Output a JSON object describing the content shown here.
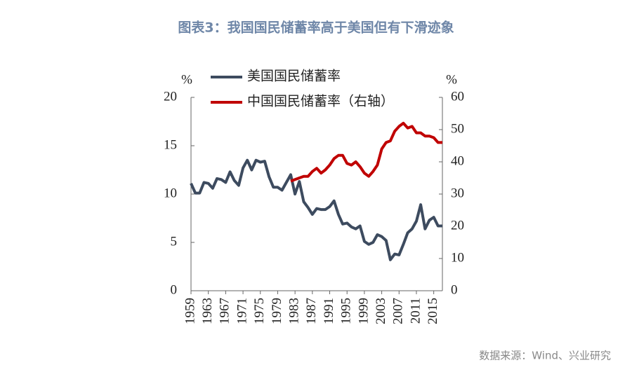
{
  "chart_data": {
    "type": "line",
    "title": "图表3：我国国民储蓄率高于美国但有下滑迹象",
    "source": "数据来源：Wind、兴业研究",
    "ylabel": "%",
    "y2label": "%",
    "x": [
      1959,
      1960,
      1961,
      1962,
      1963,
      1964,
      1965,
      1966,
      1967,
      1968,
      1969,
      1970,
      1971,
      1972,
      1973,
      1974,
      1975,
      1976,
      1977,
      1978,
      1979,
      1980,
      1981,
      1982,
      1983,
      1984,
      1985,
      1986,
      1987,
      1988,
      1989,
      1990,
      1991,
      1992,
      1993,
      1994,
      1995,
      1996,
      1997,
      1998,
      1999,
      2000,
      2001,
      2002,
      2003,
      2004,
      2005,
      2006,
      2007,
      2008,
      2009,
      2010,
      2011,
      2012,
      2013,
      2014,
      2015,
      2016,
      2017
    ],
    "xlim": [
      1959,
      2017
    ],
    "xticks": [
      1959,
      1963,
      1967,
      1971,
      1975,
      1979,
      1983,
      1987,
      1991,
      1995,
      1999,
      2003,
      2007,
      2011,
      2015
    ],
    "ylim": [
      0,
      20
    ],
    "yticks": [
      0,
      5,
      10,
      15,
      20
    ],
    "y2lim": [
      0,
      60
    ],
    "y2ticks": [
      0,
      10,
      20,
      30,
      40,
      50,
      60
    ],
    "legend": "upper left",
    "series": [
      {
        "name": "美国国民储蓄率",
        "color": "#3d4b5f",
        "values": [
          11.1,
          10.1,
          10.1,
          11.2,
          11.1,
          10.6,
          11.6,
          11.5,
          11.2,
          12.3,
          11.4,
          10.9,
          12.7,
          13.5,
          12.5,
          13.5,
          13.3,
          13.4,
          11.8,
          10.7,
          10.7,
          10.4,
          11.2,
          12.0,
          10.0,
          11.3,
          9.2,
          8.6,
          7.9,
          8.5,
          8.4,
          8.4,
          8.7,
          9.3,
          7.9,
          6.9,
          7.0,
          6.6,
          6.4,
          6.7,
          5.1,
          4.8,
          5.0,
          5.8,
          5.6,
          5.2,
          3.2,
          3.8,
          3.7,
          4.8,
          6.0,
          6.4,
          7.2,
          8.9,
          6.4,
          7.3,
          7.6,
          6.7,
          6.7
        ]
      },
      {
        "name": "中国国民储蓄率（右轴）",
        "color": "#c00000",
        "axis": "y2",
        "values": [
          null,
          null,
          null,
          null,
          null,
          null,
          null,
          null,
          null,
          null,
          null,
          null,
          null,
          null,
          null,
          null,
          null,
          null,
          null,
          null,
          null,
          null,
          null,
          34,
          34.5,
          35,
          35.5,
          35.5,
          37,
          38,
          36.5,
          37.5,
          39,
          41,
          42,
          42,
          39.5,
          39,
          40,
          38.5,
          36.5,
          35.5,
          37,
          39,
          44,
          46,
          46.5,
          49.5,
          51,
          52,
          50.5,
          51,
          49,
          49,
          48,
          48,
          47.5,
          46,
          46
        ]
      }
    ]
  }
}
